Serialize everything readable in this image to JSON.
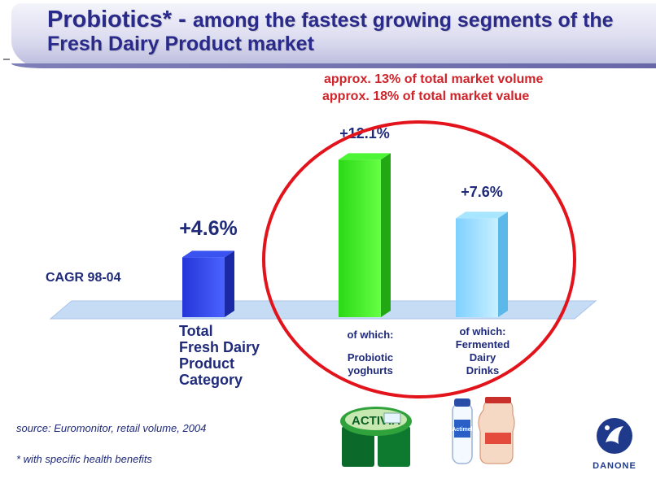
{
  "slide": {
    "title_lead": "Probiotics* - ",
    "title_rest": "among  the fastest growing segments of the Fresh Dairy Product market",
    "share_volume": "approx. 13% of total market volume",
    "share_value": "approx. 18% of total market value",
    "cagr_label": "CAGR 98-04",
    "source": "source: Euromonitor, retail volume, 2004",
    "footnote": "* with specific health benefits",
    "logo_text": "DANONE",
    "product_brand": "ACTIVIA",
    "drink_brand": "Actimel"
  },
  "chart_data": {
    "type": "bar",
    "title": "",
    "ylabel": "CAGR 98-04",
    "categories": [
      {
        "lines": [
          "Total",
          "Fresh Dairy",
          "Product",
          "Category"
        ]
      },
      {
        "lines": [
          "of which:",
          "",
          "Probiotic",
          "yoghurts"
        ]
      },
      {
        "lines": [
          "of which:",
          "Fermented",
          "Dairy",
          "Drinks"
        ]
      }
    ],
    "values": [
      4.6,
      12.1,
      7.6
    ],
    "value_labels": [
      "+4.6%",
      "+12.1%",
      "+7.6%"
    ],
    "colors": [
      "#2a3fe0",
      "#33ee22",
      "#8fdcff"
    ],
    "ylim": [
      0,
      13
    ],
    "grid": false,
    "legend": "none"
  }
}
